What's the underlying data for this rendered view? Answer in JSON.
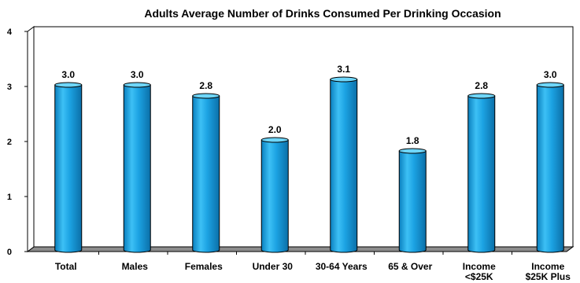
{
  "chart_data": {
    "type": "bar",
    "title": "Adults Average Number of Drinks Consumed Per Drinking Occasion",
    "categories": [
      [
        "Total"
      ],
      [
        "Males"
      ],
      [
        "Females"
      ],
      [
        "Under 30"
      ],
      [
        "30-64 Years"
      ],
      [
        "65 & Over"
      ],
      [
        "Income",
        "<$25K"
      ],
      [
        "Income",
        "$25K Plus"
      ]
    ],
    "values": [
      3.0,
      3.0,
      2.8,
      2.0,
      3.1,
      1.8,
      2.8,
      3.0
    ],
    "value_labels": [
      "3.0",
      "3.0",
      "2.8",
      "2.0",
      "3.1",
      "1.8",
      "2.8",
      "3.0"
    ],
    "y_ticks": [
      "0",
      "1",
      "2",
      "3",
      "4"
    ],
    "ylim": [
      0,
      4
    ],
    "bar_style": "3d-cylinder",
    "bar_color": "#1CA3E3",
    "grid": false,
    "legend": "none"
  }
}
